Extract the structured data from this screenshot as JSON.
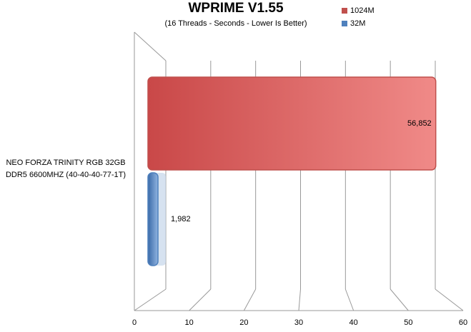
{
  "chart_data": {
    "type": "bar",
    "orientation": "horizontal",
    "title": "WPRIME V1.55",
    "subtitle": "(16 Threads - Seconds - Lower Is Better)",
    "categories": [
      "NEO FORZA TRINITY RGB 32GB DDR5 6600MHZ (40-40-40-77-1T)"
    ],
    "series": [
      {
        "name": "1024M",
        "color": "#c0504d",
        "values": [
          56.852
        ],
        "value_labels": [
          "56,852"
        ]
      },
      {
        "name": "32M",
        "color": "#4f81bd",
        "values": [
          1.982
        ],
        "value_labels": [
          "1,982"
        ]
      }
    ],
    "xlim": [
      0,
      60
    ],
    "xticks": [
      0,
      10,
      20,
      30,
      40,
      50,
      60
    ],
    "grid": true,
    "legend": "top-right"
  }
}
